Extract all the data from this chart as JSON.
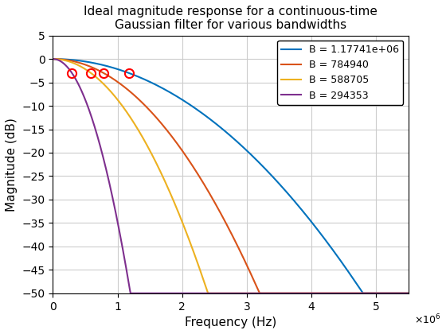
{
  "title": "Ideal magnitude response for a continuous-time\nGaussian filter for various bandwidths",
  "xlabel": "Frequency (Hz)",
  "ylabel": "Magnitude (dB)",
  "xlim": [
    0,
    5500000.0
  ],
  "ylim": [
    -50,
    5
  ],
  "yticks": [
    5,
    0,
    -5,
    -10,
    -15,
    -20,
    -25,
    -30,
    -35,
    -40,
    -45,
    -50
  ],
  "xtick_scale": 1000000.0,
  "xticks": [
    0,
    1000000.0,
    2000000.0,
    3000000.0,
    4000000.0,
    5000000.0
  ],
  "bandwidths": [
    1177410.0,
    784940,
    588705,
    294353
  ],
  "colors": [
    "#0072BD",
    "#D95319",
    "#EDB120",
    "#7E2F8E"
  ],
  "labels": [
    "B = 1.17741e+06",
    "B = 784940",
    "B = 588705",
    "B = 294353"
  ],
  "circle_color": "#FF0000",
  "background_color": "#FFFFFF",
  "grid_color": "#CCCCCC"
}
